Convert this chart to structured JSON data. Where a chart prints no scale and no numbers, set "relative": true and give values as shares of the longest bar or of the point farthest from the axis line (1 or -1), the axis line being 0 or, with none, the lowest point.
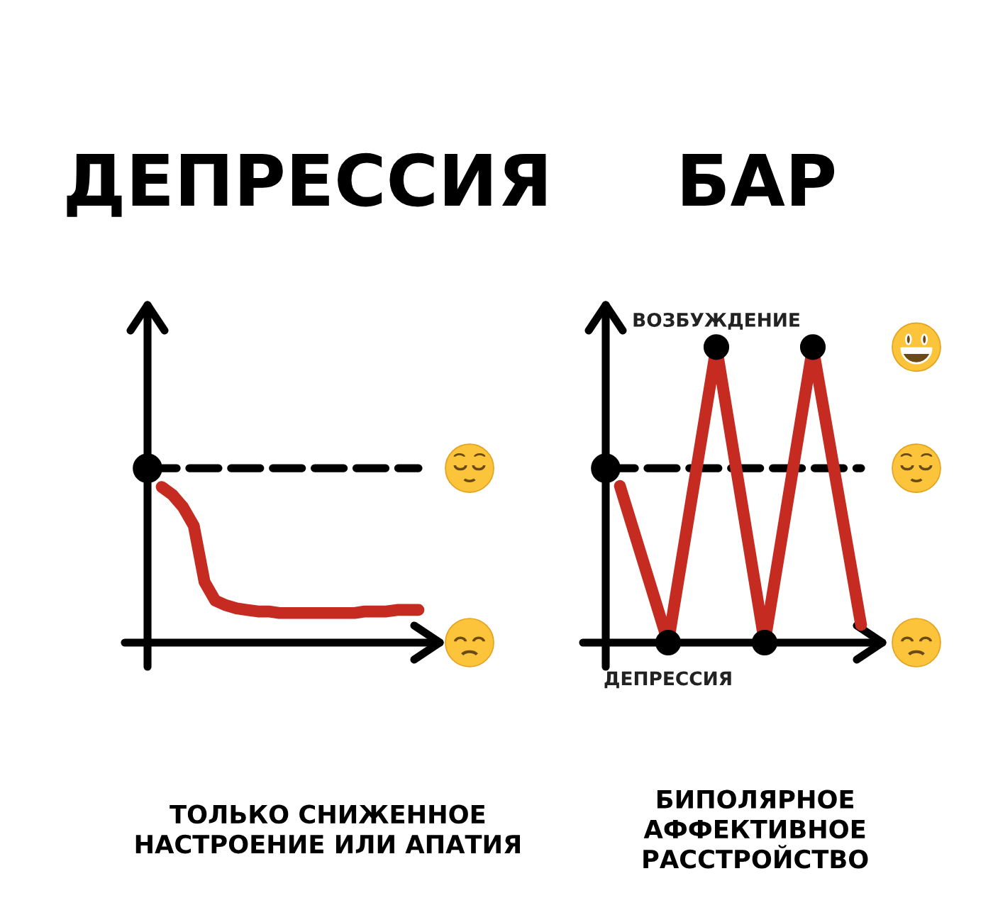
{
  "chart_data": [
    {
      "type": "line",
      "title": "ДЕПРЕССИЯ",
      "relative": true,
      "line_style": "solid",
      "categories": [
        null,
        null,
        null,
        null,
        null,
        null,
        null,
        null,
        null,
        null,
        null,
        null,
        null,
        null,
        null,
        null,
        null,
        null,
        null,
        null,
        null,
        null,
        null,
        null,
        null
      ],
      "series": [
        {
          "color": "#c62b22",
          "values": [
            1,
            0.95,
            0.87,
            0.75,
            0.39,
            0.27,
            0.24,
            0.22,
            0.21,
            0.2,
            0.2,
            0.19,
            0.19,
            0.19,
            0.19,
            0.19,
            0.19,
            0.19,
            0.19,
            0.2,
            0.2,
            0.2,
            0.21,
            0.21,
            0.21
          ]
        }
      ],
      "ref_lines": [
        {
          "axis": "y",
          "value": 1.12,
          "color": "#000000",
          "line_style": "dashed"
        }
      ],
      "annotations": [
        "ТОЛЬКО СНИЖЕННОЕ\nНАСТРОЕНИЕ ИЛИ АПАТИЯ"
      ]
    },
    {
      "type": "line",
      "title": "БАР",
      "relative": true,
      "line_style": "solid",
      "categories": [
        null,
        null,
        null,
        null,
        null,
        null
      ],
      "series": [
        {
          "color": "#c62b22",
          "values": [
            0.53,
            0,
            1,
            0,
            1,
            0.06
          ]
        }
      ],
      "ref_lines": [
        {
          "axis": "y",
          "value": 0.59,
          "color": "#000000",
          "line_style": "dashed"
        }
      ],
      "annotations": [
        "БИПОЛЯРНОЕ\nАФФЕКТИВНОЕ\nРАССТРОЙСТВО",
        {
          "text": "ВОЗБУЖДЕНИЕ",
          "y": 1
        },
        {
          "text": "ДЕПРЕССИЯ",
          "y": 0
        }
      ]
    }
  ]
}
